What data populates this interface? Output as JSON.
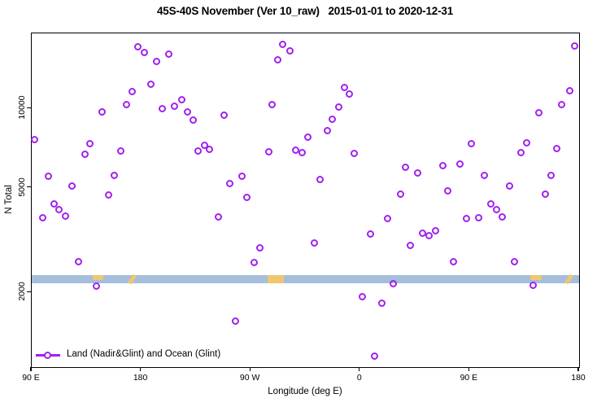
{
  "title": "45S-40S November (Ver 10_raw)   2015-01-01 to 2020-12-31",
  "legend": {
    "label": "Land (Nadir&Glint) and Ocean (Glint)",
    "marker": "open-circle-with-line",
    "marker_color": "#A020F0"
  },
  "axes": {
    "x": {
      "label": "Longitude (deg E)",
      "tick_labels": [
        "90 E",
        "180",
        "90 W",
        "0",
        "90 E",
        "180"
      ],
      "tick_positions_ext_deg": [
        90,
        180,
        270,
        360,
        450,
        540
      ],
      "range_ext_deg": [
        90,
        540
      ],
      "note": "longitude increases eastward from 90E and wraps past 180 through 90W, 0, back to 180"
    },
    "y": {
      "label": "N Total",
      "tick_labels": [
        "2000",
        "5000",
        "10000"
      ],
      "tick_values": [
        2000,
        5000,
        10000
      ],
      "scale": "log",
      "range": [
        1040,
        19300
      ]
    }
  },
  "colors": {
    "marker": "#A020F0",
    "band_ocean": "#a5bedc",
    "band_land": "#f1c671",
    "axis": "#000000",
    "background": "#ffffff"
  },
  "chart_data": {
    "type": "scatter",
    "title": "45S-40S November (Ver 10_raw)   2015-01-01 to 2020-12-31",
    "xlabel": "Longitude (deg E)",
    "ylabel": "N Total",
    "x_range_ext_deg": [
      90,
      540
    ],
    "y_range": [
      1040,
      19300
    ],
    "y_scale": "log",
    "grid": false,
    "legend_position": "bottom-left-inside",
    "series": [
      {
        "name": "Land (Nadir&Glint) and Ocean (Glint)",
        "marker": "open-circle",
        "color": "#A020F0",
        "points": [
          [
            177.5,
            17190
          ],
          [
            182.8,
            16360
          ],
          [
            202.8,
            16120
          ],
          [
            192.8,
            15120
          ],
          [
            296.3,
            17560
          ],
          [
            302.3,
            16600
          ],
          [
            292.3,
            15340
          ],
          [
            188.2,
            12380
          ],
          [
            172.8,
            11615
          ],
          [
            168.1,
            10360
          ],
          [
            148.1,
            9720
          ],
          [
            197.5,
            10000
          ],
          [
            207.5,
            10220
          ],
          [
            213.5,
            10820
          ],
          [
            218.2,
            9720
          ],
          [
            222.9,
            9050
          ],
          [
            248.2,
            9445
          ],
          [
            287.6,
            10365
          ],
          [
            138.1,
            7360
          ],
          [
            134.1,
            6710
          ],
          [
            163.4,
            6900
          ],
          [
            226.9,
            6900
          ],
          [
            232.2,
            7260
          ],
          [
            236.2,
            7000
          ],
          [
            285.0,
            6850
          ],
          [
            307.0,
            6950
          ],
          [
            312.3,
            6800
          ],
          [
            317.0,
            7790
          ],
          [
            92.0,
            7630
          ],
          [
            536.0,
            17310
          ],
          [
            347.1,
            12030
          ],
          [
            351.1,
            11370
          ],
          [
            342.4,
            10140
          ],
          [
            337.0,
            9115
          ],
          [
            333.0,
            8250
          ],
          [
            532.0,
            11700
          ],
          [
            525.3,
            10365
          ],
          [
            506.6,
            9650
          ],
          [
            496.6,
            7410
          ],
          [
            451.2,
            7360
          ],
          [
            521.3,
            7050
          ],
          [
            491.9,
            6800
          ],
          [
            355.1,
            6755
          ],
          [
            103.4,
            5535
          ],
          [
            123.4,
            5080
          ],
          [
            158.1,
            5575
          ],
          [
            153.4,
            4695
          ],
          [
            108.7,
            4345
          ],
          [
            112.7,
            4130
          ],
          [
            118.0,
            3905
          ],
          [
            98.7,
            3845
          ],
          [
            128.7,
            2620
          ],
          [
            252.9,
            5190
          ],
          [
            262.9,
            5535
          ],
          [
            266.9,
            4600
          ],
          [
            243.6,
            3875
          ],
          [
            277.6,
            2955
          ],
          [
            272.9,
            2600
          ],
          [
            397.1,
            5985
          ],
          [
            407.1,
            5690
          ],
          [
            427.8,
            6070
          ],
          [
            441.9,
            6155
          ],
          [
            461.9,
            5575
          ],
          [
            327.0,
            5380
          ],
          [
            482.6,
            5080
          ],
          [
            516.6,
            5575
          ],
          [
            393.1,
            4730
          ],
          [
            431.9,
            4865
          ],
          [
            512.0,
            4730
          ],
          [
            467.2,
            4345
          ],
          [
            471.9,
            4130
          ],
          [
            476.6,
            3875
          ],
          [
            447.2,
            3820
          ],
          [
            457.2,
            3845
          ],
          [
            382.4,
            3820
          ],
          [
            368.4,
            3335
          ],
          [
            411.2,
            3360
          ],
          [
            416.5,
            3290
          ],
          [
            421.8,
            3430
          ],
          [
            322.4,
            3085
          ],
          [
            401.1,
            3020
          ],
          [
            436.5,
            2620
          ],
          [
            486.6,
            2620
          ],
          [
            143.4,
            2115
          ],
          [
            257.6,
            1555
          ],
          [
            387.1,
            2160
          ],
          [
            361.8,
            1925
          ],
          [
            377.8,
            1820
          ],
          [
            371.8,
            1145
          ],
          [
            502.0,
            2130
          ]
        ]
      }
    ],
    "map_band": {
      "description": "horizontal latitude-strip map: ocean in blue, land in tan",
      "n_low": 2160,
      "n_high": 2320,
      "ocean_color": "#a5bedc",
      "land_color": "#f1c671",
      "land_segments": [
        {
          "lon_from": 140,
          "lon_to": 149,
          "style": "top"
        },
        {
          "lon_from": 167,
          "lon_to": 177,
          "style": "slash"
        },
        {
          "lon_from": 284,
          "lon_to": 297,
          "style": "full"
        },
        {
          "lon_from": 500,
          "lon_to": 509,
          "style": "top"
        },
        {
          "lon_from": 527,
          "lon_to": 536,
          "style": "slash"
        }
      ]
    }
  }
}
